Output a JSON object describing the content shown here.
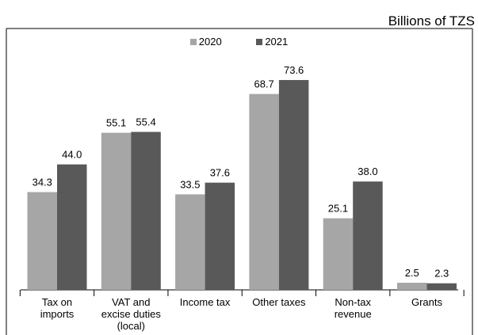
{
  "chart_data": {
    "type": "bar",
    "unit_label": "Billions of TZS",
    "categories": [
      [
        "Tax on",
        "imports"
      ],
      [
        "VAT and",
        "excise duties",
        "(local)"
      ],
      [
        "Income tax"
      ],
      [
        "Other taxes"
      ],
      [
        "Non-tax",
        "revenue"
      ],
      [
        "Grants"
      ]
    ],
    "series": [
      {
        "name": "2020",
        "color": "#a6a6a6",
        "values": [
          34.3,
          55.1,
          33.5,
          68.7,
          25.1,
          2.5
        ]
      },
      {
        "name": "2021",
        "color": "#595959",
        "values": [
          44.0,
          55.4,
          37.6,
          73.6,
          38.0,
          2.3
        ]
      }
    ],
    "ylim": [
      0,
      80
    ],
    "grid": false,
    "legend_position": "top-center"
  }
}
